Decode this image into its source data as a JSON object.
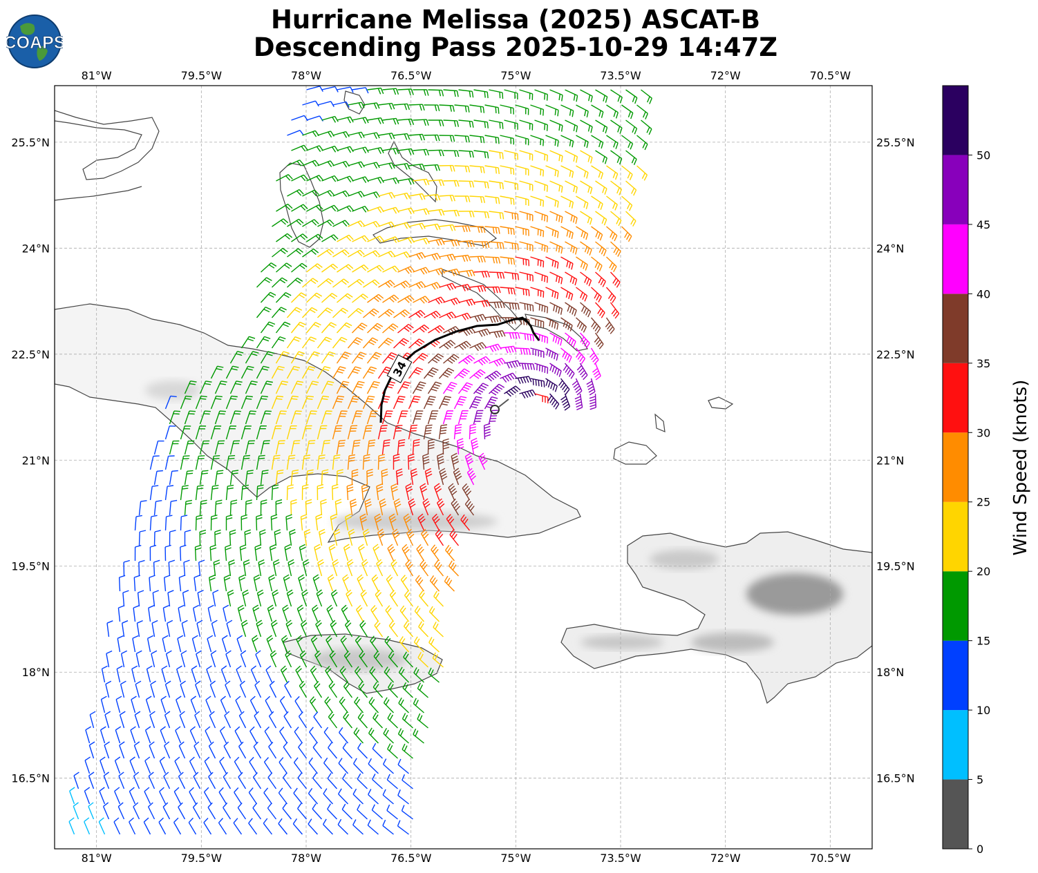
{
  "title": {
    "line1": "Hurricane Melissa (2025) ASCAT-B",
    "line2": "Descending Pass 2025-10-29 14:47Z"
  },
  "logo": {
    "text": "COAPS"
  },
  "map": {
    "lon_range": [
      -81.6,
      -69.9
    ],
    "lat_range": [
      15.5,
      26.3
    ],
    "lon_ticks": [
      "81°W",
      "79.5°W",
      "78°W",
      "76.5°W",
      "75°W",
      "73.5°W",
      "72°W",
      "70.5°W"
    ],
    "lon_tick_values": [
      -81.0,
      -79.5,
      -78.0,
      -76.5,
      -75.0,
      -73.5,
      -72.0,
      -70.5
    ],
    "lat_ticks": [
      "16.5°N",
      "18°N",
      "19.5°N",
      "21°N",
      "22.5°N",
      "24°N",
      "25.5°N"
    ],
    "lat_tick_values": [
      16.5,
      18.0,
      19.5,
      21.0,
      22.5,
      24.0,
      25.5
    ],
    "grid": true,
    "contour_label": "34",
    "storm_center": [
      -74.7,
      21.6
    ]
  },
  "colorbar": {
    "label": "Wind Speed (knots)",
    "tick_labels": [
      "0",
      "5",
      "10",
      "15",
      "20",
      "25",
      "30",
      "35",
      "40",
      "45",
      "50"
    ],
    "bins": [
      {
        "min": 0,
        "max": 5,
        "color": "#555555"
      },
      {
        "min": 5,
        "max": 10,
        "color": "#00bfff"
      },
      {
        "min": 10,
        "max": 15,
        "color": "#0040ff"
      },
      {
        "min": 15,
        "max": 20,
        "color": "#009900"
      },
      {
        "min": 20,
        "max": 25,
        "color": "#ffd500"
      },
      {
        "min": 25,
        "max": 30,
        "color": "#ff8c00"
      },
      {
        "min": 30,
        "max": 35,
        "color": "#ff1010"
      },
      {
        "min": 35,
        "max": 40,
        "color": "#7f3b2a"
      },
      {
        "min": 40,
        "max": 45,
        "color": "#ff00ff"
      },
      {
        "min": 45,
        "max": 50,
        "color": "#8800bb"
      },
      {
        "min": 50,
        "max": 55,
        "color": "#2b0060"
      }
    ]
  }
}
